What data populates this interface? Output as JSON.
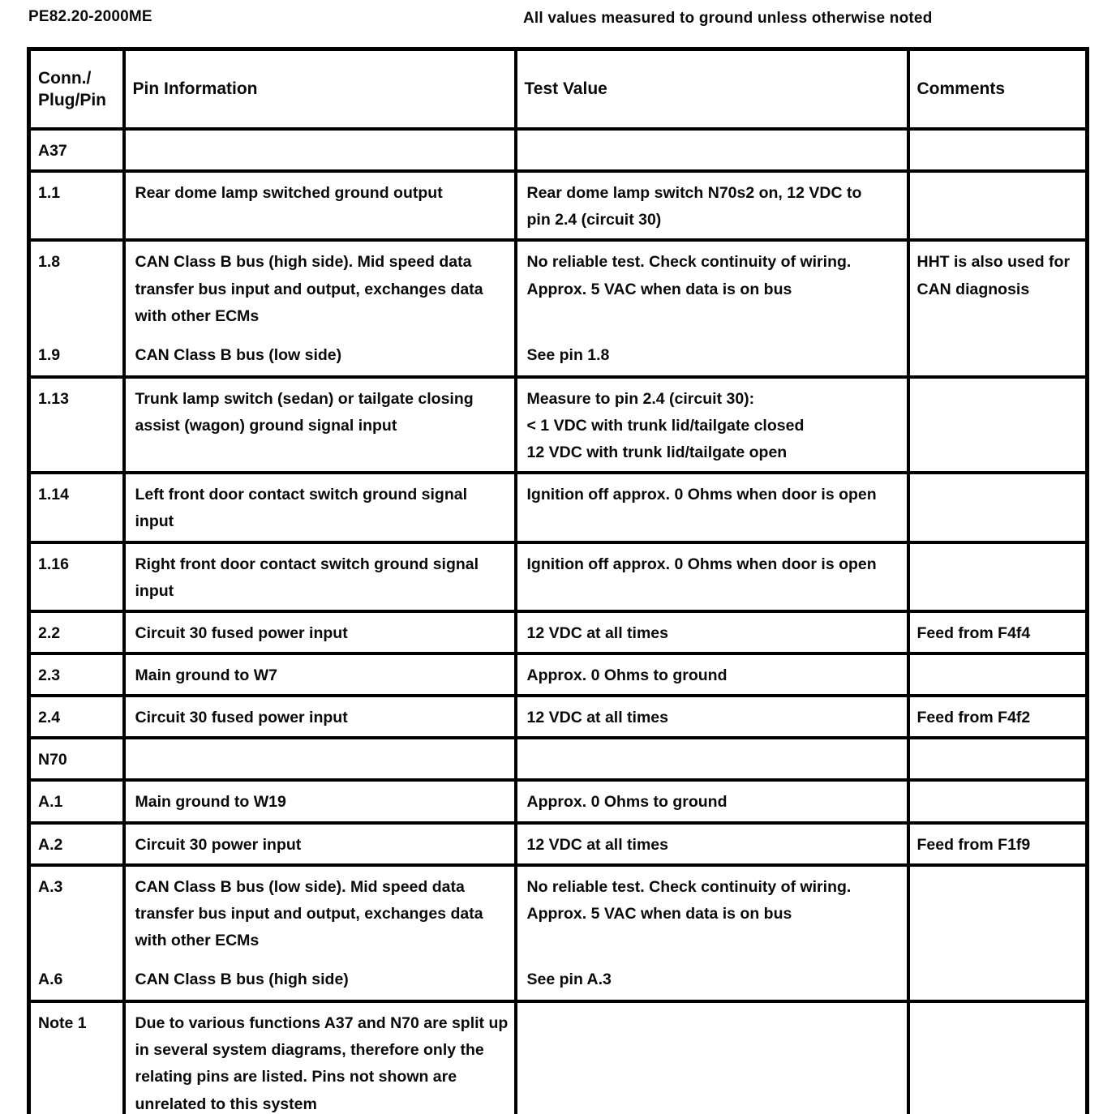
{
  "page": {
    "doc_code": "PE82.20-2000ME",
    "measurement_note": "All values measured to ground unless otherwise noted"
  },
  "table": {
    "headers": [
      "Conn./\nPlug/Pin",
      "Pin Information",
      "Test Value",
      "Comments"
    ],
    "rows": [
      {
        "type": "section",
        "pin": "A37"
      },
      {
        "type": "single",
        "pin": "1.1",
        "info": "Rear dome lamp switched ground output",
        "test": "Rear dome lamp switch N70s2 on, 12 VDC to\npin 2.4 (circuit 30)",
        "comment": ""
      },
      {
        "type": "multi",
        "comment": "HHT is also used for CAN diagnosis",
        "entries": [
          {
            "pin": "1.8",
            "info": "CAN Class B bus (high side). Mid speed data transfer bus input and output, exchanges data with other ECMs",
            "test": "No reliable test. Check continuity of wiring.\nApprox. 5 VAC when data is on bus"
          },
          {
            "pin": "1.9",
            "info": "CAN Class B bus (low side)",
            "test": "See pin 1.8"
          }
        ]
      },
      {
        "type": "single",
        "pin": "1.13",
        "info": "Trunk lamp switch (sedan) or tailgate closing assist (wagon) ground signal input",
        "test": "Measure to pin 2.4 (circuit 30):\n< 1 VDC with trunk lid/tailgate closed\n12 VDC with trunk lid/tailgate open",
        "comment": ""
      },
      {
        "type": "single",
        "pin": "1.14",
        "info": "Left front door contact switch ground signal input",
        "test": "Ignition off approx. 0 Ohms when door is open",
        "comment": ""
      },
      {
        "type": "single",
        "pin": "1.16",
        "info": "Right front door contact switch ground signal input",
        "test": "Ignition off approx. 0 Ohms when door is open",
        "comment": ""
      },
      {
        "type": "single",
        "pin": "2.2",
        "info": "Circuit 30 fused power input",
        "test": "12 VDC at all times",
        "comment": "Feed from F4f4"
      },
      {
        "type": "single",
        "pin": "2.3",
        "info": "Main ground to W7",
        "test": "Approx. 0 Ohms to ground",
        "comment": ""
      },
      {
        "type": "single",
        "pin": "2.4",
        "info": "Circuit 30 fused power input",
        "test": "12 VDC at all times",
        "comment": "Feed from F4f2"
      },
      {
        "type": "section",
        "pin": "N70"
      },
      {
        "type": "single",
        "pin": "A.1",
        "info": "Main ground to W19",
        "test": "Approx. 0 Ohms to ground",
        "comment": ""
      },
      {
        "type": "single",
        "pin": "A.2",
        "info": "Circuit 30 power input",
        "test": "12 VDC at all times",
        "comment": "Feed from F1f9"
      },
      {
        "type": "multi",
        "comment": "",
        "entries": [
          {
            "pin": "A.3",
            "info": "CAN Class B bus (low side). Mid speed data transfer bus input and output, exchanges data with other ECMs",
            "test": "No reliable test. Check continuity of wiring.\nApprox. 5 VAC when data is on bus"
          },
          {
            "pin": "A.6",
            "info": "CAN Class B bus (high side)",
            "test": "See pin A.3"
          }
        ]
      },
      {
        "type": "single",
        "pin": "Note 1",
        "info": "Due to various functions A37 and N70 are split up in several system diagrams, therefore only the relating pins are listed. Pins not shown are unrelated to this system",
        "test": "",
        "comment": ""
      }
    ]
  }
}
